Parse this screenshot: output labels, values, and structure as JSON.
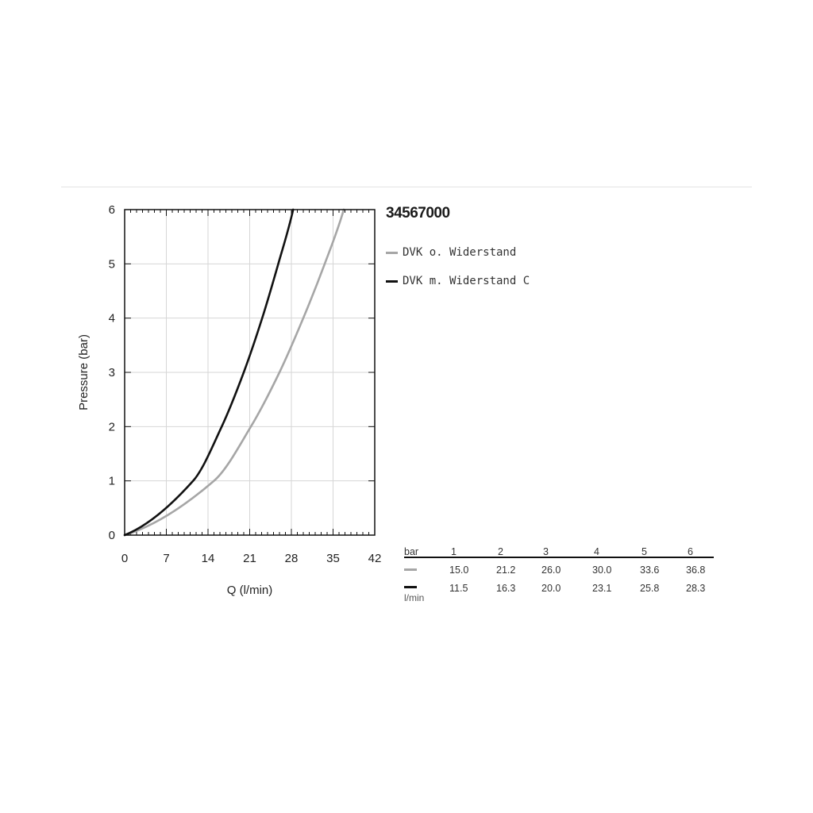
{
  "chart_data": {
    "type": "line",
    "title": "34567000",
    "xlabel": "Q (l/min)",
    "ylabel": "Pressure (bar)",
    "xlim": [
      0,
      42
    ],
    "ylim": [
      0,
      6
    ],
    "x_ticks": [
      0,
      7,
      14,
      21,
      28,
      35,
      42
    ],
    "y_ticks": [
      0,
      1,
      2,
      3,
      4,
      5,
      6
    ],
    "grid": true,
    "legend_position": "right",
    "series": [
      {
        "name": "DVK o. Widerstand",
        "color": "#a6a6a6",
        "points": [
          [
            0,
            0
          ],
          [
            15.0,
            1
          ],
          [
            21.2,
            2
          ],
          [
            26.0,
            3
          ],
          [
            30.0,
            4
          ],
          [
            33.6,
            5
          ],
          [
            36.8,
            6
          ]
        ]
      },
      {
        "name": "DVK m. Widerstand C",
        "color": "#111111",
        "points": [
          [
            0,
            0
          ],
          [
            11.5,
            1
          ],
          [
            16.3,
            2
          ],
          [
            20.0,
            3
          ],
          [
            23.1,
            4
          ],
          [
            25.8,
            5
          ],
          [
            28.3,
            6
          ]
        ]
      }
    ]
  },
  "table": {
    "header_label": "bar",
    "columns": [
      "1",
      "2",
      "3",
      "4",
      "5",
      "6"
    ],
    "unit_label": "l/min",
    "rows": [
      {
        "color": "#a6a6a6",
        "values": [
          "15.0",
          "21.2",
          "26.0",
          "30.0",
          "33.6",
          "36.8"
        ]
      },
      {
        "color": "#111111",
        "values": [
          "11.5",
          "16.3",
          "20.0",
          "23.1",
          "25.8",
          "28.3"
        ]
      }
    ]
  }
}
